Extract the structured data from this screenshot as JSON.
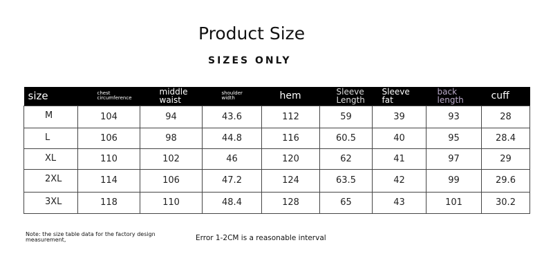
{
  "title": "Product Size",
  "subtitle": "SIZES ONLY",
  "headers": [
    "size",
    "chest circumference",
    "middle waist",
    "shoulder width",
    "hem",
    "Sleeve Length",
    "Sleeve fat",
    "back length",
    "cuff"
  ],
  "rows": [
    [
      "M",
      "104",
      "94",
      "43.6",
      "112",
      "59",
      "39",
      "93",
      "28"
    ],
    [
      "L",
      "106",
      "98",
      "44.8",
      "116",
      "60.5",
      "40",
      "95",
      "28.4"
    ],
    [
      "XL",
      "110",
      "102",
      "46",
      "120",
      "62",
      "41",
      "97",
      "29"
    ],
    [
      "2XL",
      "114",
      "106",
      "47.2",
      "124",
      "63.5",
      "42",
      "99",
      "29.6"
    ],
    [
      "3XL",
      "118",
      "110",
      "48.4",
      "128",
      "65",
      "43",
      "101",
      "30.2"
    ]
  ],
  "note": "Note: the size table data for the factory design measurement,",
  "error_note": "Error 1-2CM is a reasonable interval"
}
